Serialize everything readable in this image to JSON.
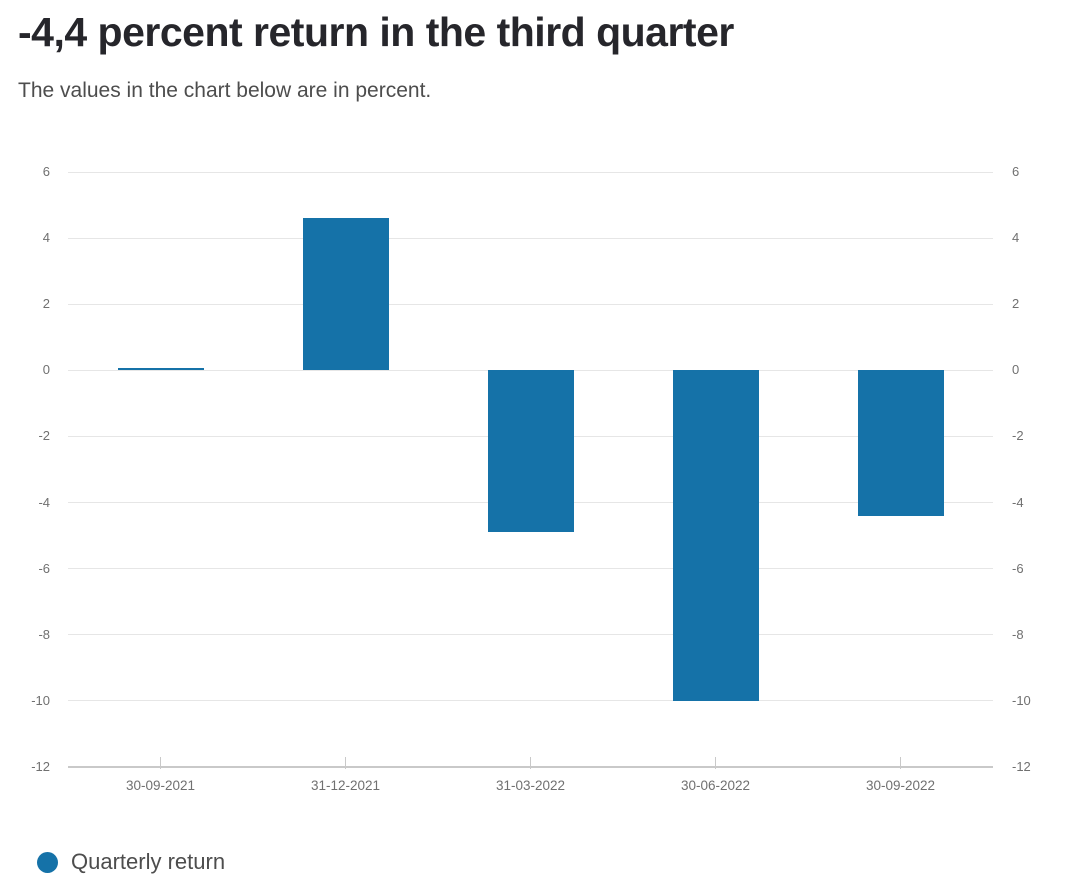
{
  "header": {
    "title": "-4,4 percent return in the third quarter",
    "subtitle": "The values in the chart below are in percent."
  },
  "legend": {
    "items": [
      {
        "label": "Quarterly return",
        "marker": "circle",
        "color": "#1572A8"
      }
    ]
  },
  "colors": {
    "bar": "#1572A8",
    "gridline": "#e6e6e6",
    "axis_line": "#c9c9c9",
    "tick": "#c9c9c9",
    "axis_label": "#707070",
    "title": "#26262b",
    "subtitle": "#4d4d4d"
  },
  "chart_data": {
    "type": "bar",
    "title": "-4,4 percent return in the third quarter",
    "subtitle": "The values in the chart below are in percent.",
    "categories": [
      "30-09-2021",
      "31-12-2021",
      "31-03-2022",
      "30-06-2022",
      "30-09-2022"
    ],
    "series": [
      {
        "name": "Quarterly return",
        "values": [
          0.0,
          4.6,
          -4.9,
          -10.0,
          -4.4
        ]
      }
    ],
    "xlabel": "",
    "ylabel": "",
    "unit": "percent",
    "ylim": [
      -12,
      6
    ],
    "yticks": [
      6,
      4,
      2,
      0,
      -2,
      -4,
      -6,
      -8,
      -10,
      -12
    ],
    "grid": true,
    "y_axis_sides": [
      "left",
      "right"
    ],
    "legend_position": "bottom-left"
  }
}
